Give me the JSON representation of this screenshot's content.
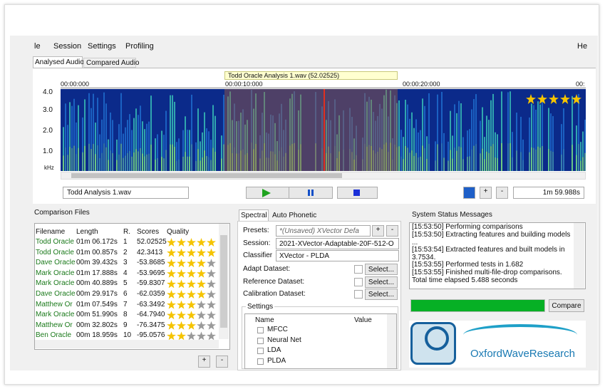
{
  "menu": [
    "le",
    "Session",
    "Settings",
    "Profiling",
    "He"
  ],
  "tabs": [
    "Analysed Audio",
    "Compared Audio"
  ],
  "spectrogram": {
    "selection_label": "Todd Oracle Analysis 1.wav (52.02525)",
    "time_labels": [
      "00:00:000",
      "00:00:10:000",
      "00:00:20:000",
      "00:"
    ],
    "freq_labels": [
      "4.0",
      "3.0",
      "2.0",
      "1.0",
      "kHz"
    ],
    "rating": 5
  },
  "player": {
    "filename": "Todd Analysis 1.wav",
    "duration": "1m 59.988s",
    "buttons": [
      "+",
      "-"
    ]
  },
  "comparison_files": {
    "title": "Comparison Files",
    "columns": [
      "Filename",
      "Length",
      "R.",
      "Scores",
      "Quality"
    ],
    "rows": [
      [
        "Todd Oracle",
        "01m 06.172s",
        "1",
        "52.02525",
        5
      ],
      [
        "Todd Oracle",
        "01m 00.857s",
        "2",
        "42.3413",
        5
      ],
      [
        "Dave Oracle",
        "00m 39.432s",
        "3",
        "-53.8685",
        4
      ],
      [
        "Mark Oracle",
        "01m 17.888s",
        "4",
        "-53.9695",
        4
      ],
      [
        "Mark Oracle",
        "00m 40.889s",
        "5",
        "-59.8307",
        4
      ],
      [
        "Dave Oracle",
        "00m 29.917s",
        "6",
        "-62.0359",
        4
      ],
      [
        "Matthew Or",
        "01m 07.549s",
        "7",
        "-63.3492",
        3
      ],
      [
        "Mark Oracle",
        "00m 51.990s",
        "8",
        "-64.7940",
        3
      ],
      [
        "Matthew Or",
        "00m 32.802s",
        "9",
        "-76.3475",
        3
      ],
      [
        "Ben Oracle",
        "00m 18.959s",
        "10",
        "-95.0576",
        2
      ]
    ],
    "buttons": [
      "+",
      "-"
    ]
  },
  "spectral": {
    "tabs": [
      "Spectral",
      "Auto Phonetic"
    ],
    "presets_label": "Presets:",
    "presets_value": "*(Unsaved) XVector Defa",
    "session_label": "Session:",
    "session_value": "2021-XVector-Adaptable-20F-512-O",
    "classifier_label": "Classifier",
    "classifier_value": "XVector - PLDA",
    "datasets": [
      "Adapt Dataset:",
      "Reference Dataset:",
      "Calibration Dataset:"
    ],
    "select_button": "Select...",
    "settings_title": "Settings",
    "settings_columns": [
      "Name",
      "Value"
    ],
    "settings_items": [
      "MFCC",
      "Neural Net",
      "LDA",
      "PLDA"
    ],
    "preset_buttons": [
      "+",
      "-"
    ]
  },
  "status": {
    "title": "System Status Messages",
    "messages": [
      "[15:53:50] Performing comparisons",
      "[15:53:50] Extracting features and building models ...",
      "[15:53:54] Extracted features and built models in 3.7534.",
      "[15:53:55] Performed tests in 1.682",
      "[15:53:55] Finished multi-file-drop comparisons. Total time elapsed 5.488 seconds"
    ],
    "compare_button": "Compare",
    "logo": "OxfordWaveResearch"
  }
}
